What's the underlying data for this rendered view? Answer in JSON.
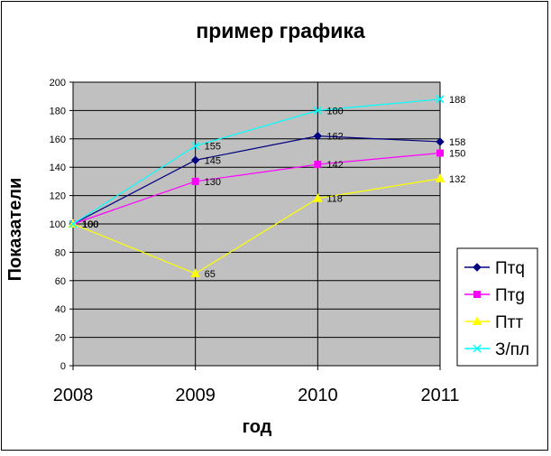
{
  "chart_data": {
    "type": "line",
    "title": "пример графика",
    "xlabel": "год",
    "ylabel": "Показатели",
    "categories": [
      "2008",
      "2009",
      "2010",
      "2011"
    ],
    "ylim": [
      0,
      200
    ],
    "yticks": [
      0,
      20,
      40,
      60,
      80,
      100,
      120,
      140,
      160,
      180,
      200
    ],
    "grid": true,
    "plot_background": "#C0C0C0",
    "legend_position": "right",
    "series": [
      {
        "name": "Птq",
        "values": [
          100,
          145,
          162,
          158
        ],
        "color": "#000080",
        "marker": "diamond"
      },
      {
        "name": "Птg",
        "values": [
          100,
          130,
          142,
          150
        ],
        "color": "#FF00FF",
        "marker": "square"
      },
      {
        "name": "Птт",
        "values": [
          100,
          65,
          118,
          132
        ],
        "color": "#FFFF00",
        "marker": "triangle"
      },
      {
        "name": "З/пл",
        "values": [
          100,
          155,
          180,
          188
        ],
        "color": "#00FFFF",
        "marker": "x"
      }
    ]
  }
}
